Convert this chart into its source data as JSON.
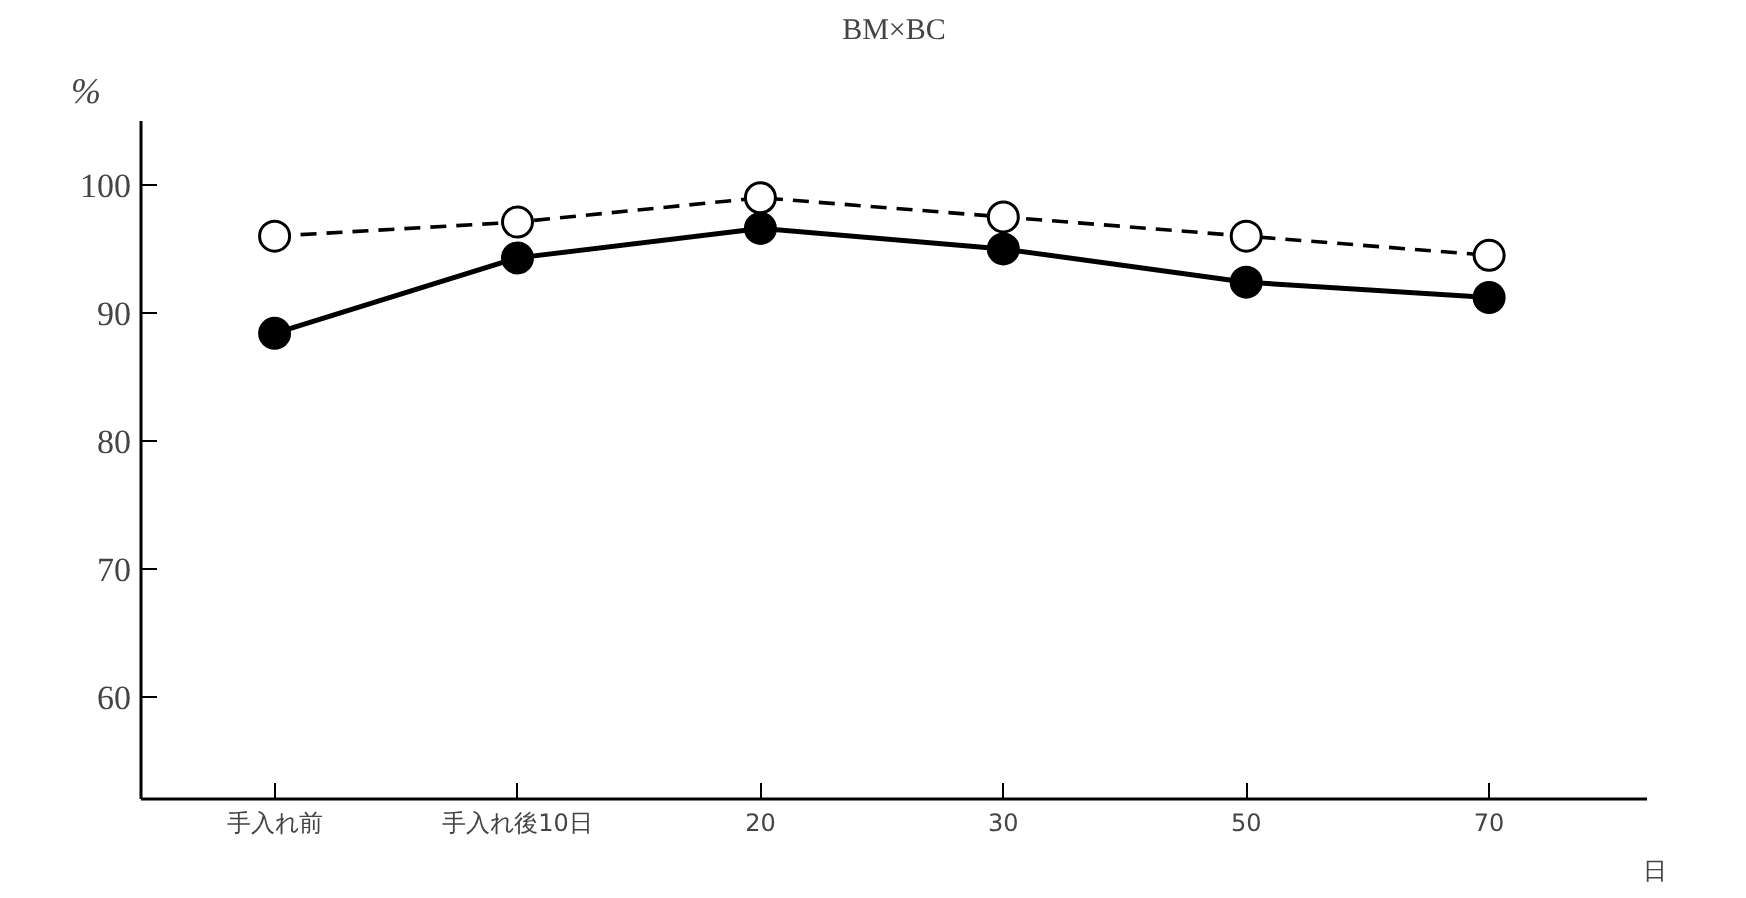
{
  "chart_data": {
    "type": "line",
    "title": "BM×BC",
    "ylabel": "%",
    "xlabel": "日",
    "categories": [
      "手入れ前",
      "手入れ後10日",
      "20",
      "30",
      "50",
      "70"
    ],
    "ylim": [
      52,
      105
    ],
    "yticks": [
      60,
      70,
      80,
      90,
      100
    ],
    "grid": false,
    "marker": "circle",
    "series": [
      {
        "color": "#000000",
        "line_style": "dashed",
        "values": [
          96.0,
          97.1,
          99.0,
          97.5,
          96.0,
          94.5
        ]
      },
      {
        "color": "#000000",
        "line_style": "solid",
        "values": [
          88.4,
          94.3,
          96.6,
          95.0,
          92.4,
          91.2
        ]
      }
    ]
  }
}
